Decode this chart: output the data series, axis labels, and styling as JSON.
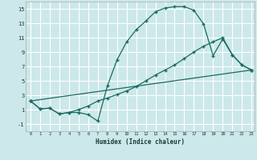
{
  "title": "",
  "xlabel": "Humidex (Indice chaleur)",
  "bg_color": "#cce8ea",
  "grid_color": "#ffffff",
  "line_color": "#1a6b60",
  "curve1_x": [
    0,
    1,
    2,
    3,
    4,
    5,
    6,
    7,
    8,
    9,
    10,
    11,
    12,
    13,
    14,
    15,
    16,
    17,
    18,
    19,
    20,
    21,
    22,
    23
  ],
  "curve1_y": [
    2.2,
    1.1,
    1.2,
    0.4,
    0.6,
    0.6,
    0.3,
    -0.6,
    4.3,
    7.9,
    10.4,
    12.1,
    13.3,
    14.6,
    15.1,
    15.3,
    15.3,
    14.8,
    12.9,
    8.5,
    10.8,
    8.6,
    7.2,
    6.5
  ],
  "curve2_x": [
    0,
    1,
    2,
    3,
    4,
    5,
    6,
    7,
    8,
    9,
    10,
    11,
    12,
    13,
    14,
    15,
    16,
    17,
    18,
    19,
    20,
    21,
    22,
    23
  ],
  "curve2_y": [
    2.2,
    1.1,
    1.2,
    0.4,
    0.6,
    1.0,
    1.5,
    2.2,
    2.6,
    3.1,
    3.6,
    4.2,
    5.0,
    5.8,
    6.5,
    7.2,
    8.1,
    9.0,
    9.8,
    10.4,
    11.0,
    8.6,
    7.2,
    6.5
  ],
  "curve3_x": [
    0,
    23
  ],
  "curve3_y": [
    2.2,
    6.5
  ],
  "xlim": [
    -0.5,
    23.3
  ],
  "ylim": [
    -2.0,
    16.0
  ],
  "yticks": [
    -1,
    1,
    3,
    5,
    7,
    9,
    11,
    13,
    15
  ],
  "xticks": [
    0,
    1,
    2,
    3,
    4,
    5,
    6,
    7,
    8,
    9,
    10,
    11,
    12,
    13,
    14,
    15,
    16,
    17,
    18,
    19,
    20,
    21,
    22,
    23
  ]
}
